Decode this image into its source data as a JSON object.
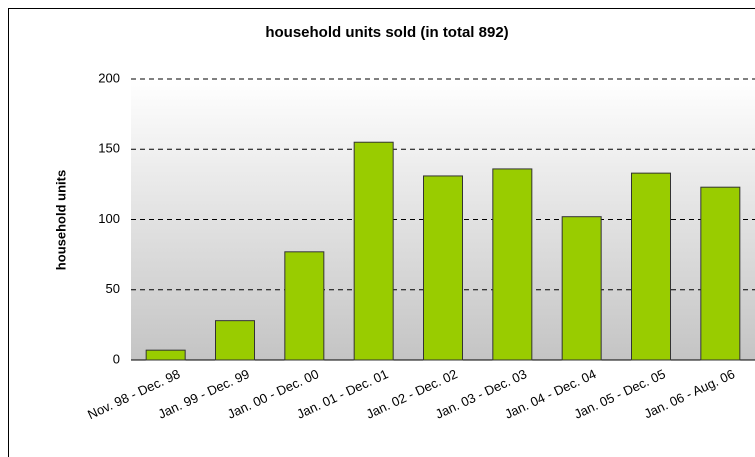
{
  "chart_data": {
    "type": "bar",
    "title": "household units sold (in total 892)",
    "y_label": "household units",
    "categories": [
      "Nov. 98 - Dec. 98",
      "Jan. 99 - Dec. 99",
      "Jan. 00 - Dec. 00",
      "Jan. 01 - Dec. 01",
      "Jan. 02 - Dec. 02",
      "Jan. 03 - Dec. 03",
      "Jan. 04 - Dec. 04",
      "Jan. 05 - Dec. 05",
      "Jan. 06 - Aug. 06"
    ],
    "values": [
      7,
      28,
      77,
      155,
      131,
      136,
      102,
      133,
      123
    ],
    "color": "#99cc00",
    "ylim": [
      0,
      200
    ],
    "yticks": [
      0,
      50,
      100,
      150,
      200
    ],
    "grid": true
  }
}
